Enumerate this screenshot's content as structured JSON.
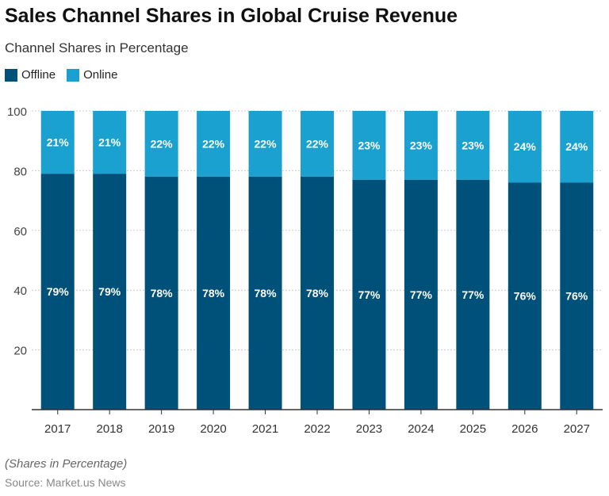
{
  "title": "Sales Channel Shares in Global Cruise Revenue",
  "subtitle": "Channel Shares in Percentage",
  "note": "(Shares in Percentage)",
  "source": "Source: Market.us News",
  "chart_data": {
    "type": "bar",
    "stacked": true,
    "categories": [
      "2017",
      "2018",
      "2019",
      "2020",
      "2021",
      "2022",
      "2023",
      "2024",
      "2025",
      "2026",
      "2027"
    ],
    "series": [
      {
        "name": "Offline",
        "color": "#00517a",
        "values": [
          79,
          79,
          78,
          78,
          78,
          78,
          77,
          77,
          77,
          76,
          76
        ]
      },
      {
        "name": "Online",
        "color": "#1aa1cf",
        "values": [
          21,
          21,
          22,
          22,
          22,
          22,
          23,
          23,
          23,
          24,
          24
        ]
      }
    ],
    "ylim": [
      0,
      100
    ],
    "yticks": [
      20,
      40,
      60,
      80,
      100
    ],
    "grid": true,
    "legend": "top-left",
    "data_label_suffix": "%"
  }
}
